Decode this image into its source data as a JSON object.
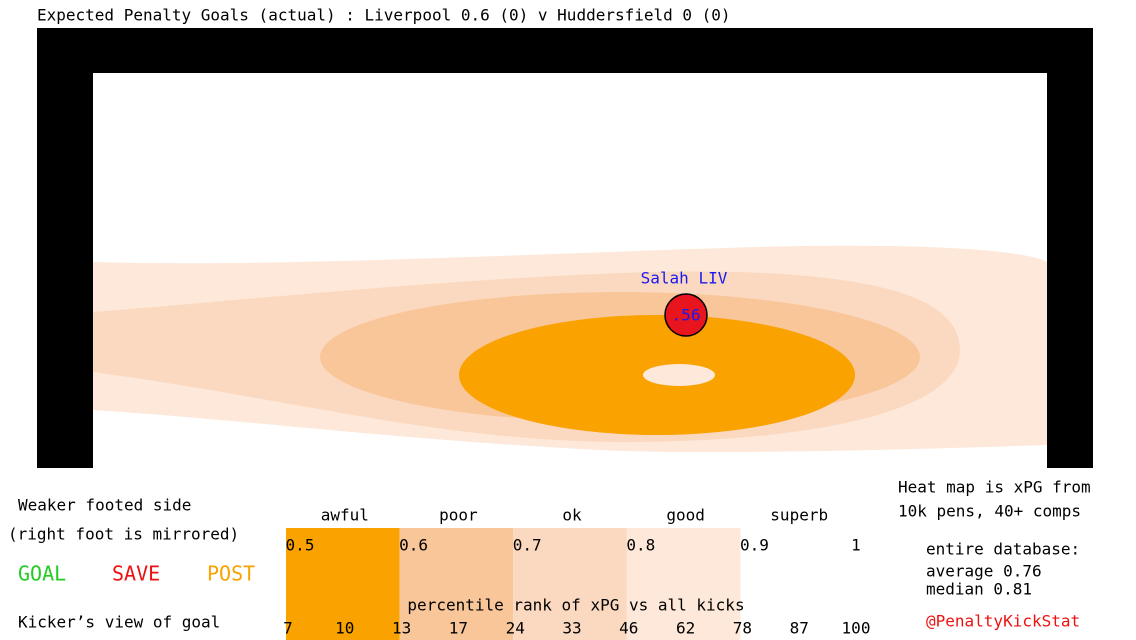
{
  "chart_data": {
    "type": "scatter",
    "title": "Expected Penalty Goals (actual) :  Liverpool 0.6 (0) v Huddersfield 0 (0)",
    "series": [
      {
        "name": "Salah LIV",
        "color": "#e8141e",
        "values": [
          0.56
        ],
        "value_labels": [
          ".56"
        ]
      }
    ],
    "side_text": [
      "Weaker footed side",
      "(right foot is mirrored)"
    ],
    "outcomes": [
      {
        "label": "GOAL",
        "color": "#22cc22"
      },
      {
        "label": "SAVE",
        "color": "#ee1111"
      },
      {
        "label": "POST",
        "color": "#f9a200"
      }
    ],
    "view_text": "Kicker’s view of goal",
    "ratings": [
      "awful",
      "poor",
      "ok",
      "good",
      "superb"
    ],
    "scale_ticks": [
      0.5,
      0.6,
      0.7,
      0.8,
      0.9,
      1
    ],
    "scale_colors": [
      "#f9a200",
      "#f9c69a",
      "#fbd9c0",
      "#fde8d9",
      "#ffffff"
    ],
    "percentile_label": "percentile rank of xPG vs all kicks",
    "percentile_ticks": [
      7,
      10,
      13,
      17,
      24,
      33,
      46,
      62,
      78,
      87,
      100
    ],
    "notes": [
      "Heat map is xPG from",
      "10k pens, 40+ comps",
      "entire database:",
      "average 0.76",
      "median 0.81"
    ],
    "credit": "@PenaltyKickStat"
  }
}
